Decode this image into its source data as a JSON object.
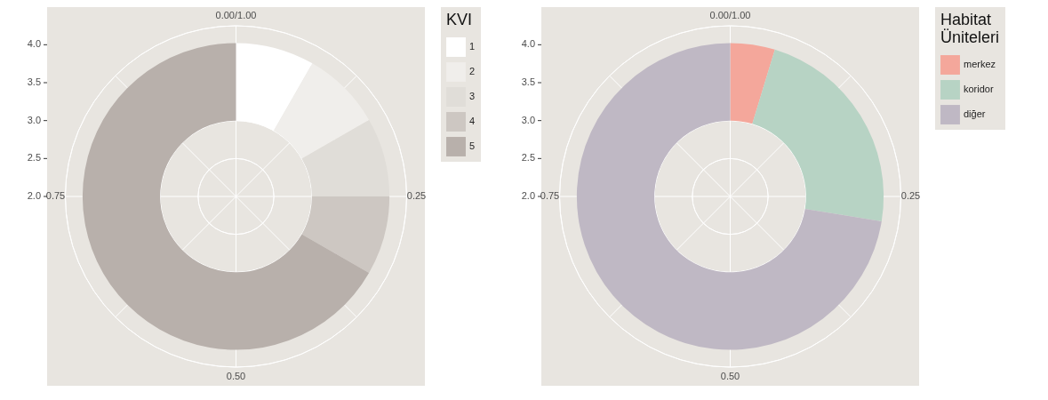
{
  "chart_data": [
    {
      "type": "donut",
      "categories": [
        "1",
        "2",
        "3",
        "4",
        "5"
      ],
      "values": [
        8.3,
        8.4,
        8.3,
        8.3,
        66.7
      ],
      "colors": [
        "#ffffff",
        "#f0eeeb",
        "#e0ddd8",
        "#cdc7c2",
        "#b8b0ab"
      ],
      "legend_title": "KVI",
      "legend": "right",
      "grid": true,
      "annotations": [
        "0.00/1.00",
        "0.25",
        "0.50",
        "0.75",
        "2.0",
        "2.5",
        "3.0",
        "3.5",
        "4.0"
      ]
    },
    {
      "type": "donut",
      "categories": [
        "merkez",
        "koridor",
        "diğer"
      ],
      "values": [
        4.7,
        22.9,
        72.4
      ],
      "colors": [
        "#f4a79b",
        "#b7d3c4",
        "#bfb8c4"
      ],
      "legend_title": "Habitat Üniteleri",
      "legend": "right",
      "grid": true,
      "annotations": [
        "0.00/1.00",
        "0.25",
        "0.50",
        "0.75",
        "2.0",
        "2.5",
        "3.0",
        "3.5",
        "4.0"
      ]
    }
  ]
}
